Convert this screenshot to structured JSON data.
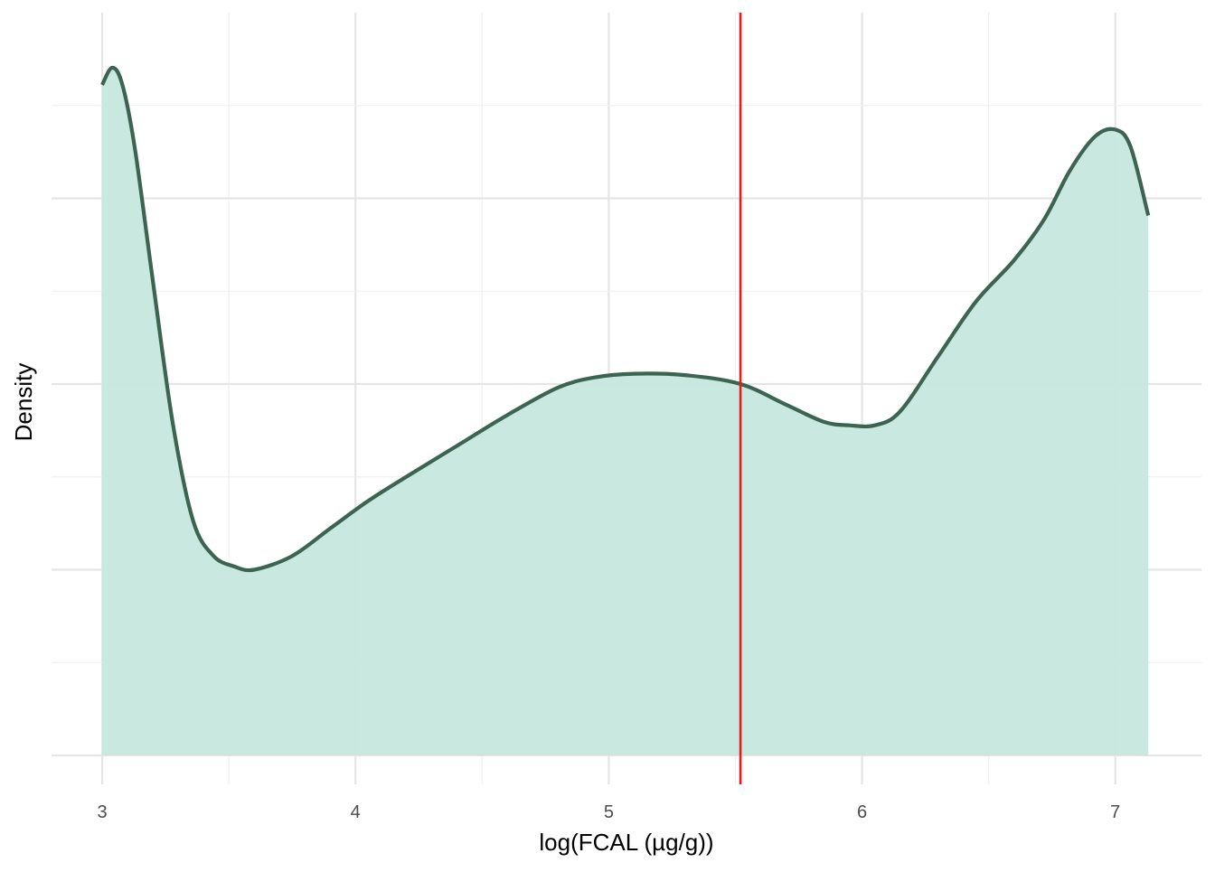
{
  "chart_data": {
    "type": "area",
    "title": "",
    "xlabel": "log(FCAL (µg/g))",
    "ylabel": "Density",
    "x_ticks": [
      "3",
      "4",
      "5",
      "6",
      "7"
    ],
    "y_ticks_labeled": false,
    "xlim": [
      2.8,
      7.34
    ],
    "ylim": [
      0,
      1.08
    ],
    "grid": true,
    "legend": "none",
    "reference_line": {
      "x": 5.52,
      "color": "#e41a1c"
    },
    "fill_color": "#c6e7de",
    "line_color": "#3d6352",
    "series": [
      {
        "x": [
          3.0,
          3.04,
          3.08,
          3.13,
          3.2,
          3.28,
          3.36,
          3.44,
          3.52,
          3.6,
          3.75,
          3.9,
          4.05,
          4.2,
          4.4,
          4.6,
          4.8,
          4.95,
          5.1,
          5.3,
          5.52,
          5.7,
          5.85,
          5.95,
          6.05,
          6.15,
          6.3,
          6.45,
          6.6,
          6.72,
          6.82,
          6.92,
          7.0,
          7.06,
          7.13
        ],
        "y": [
          0.975,
          1.0,
          0.975,
          0.88,
          0.69,
          0.48,
          0.34,
          0.29,
          0.275,
          0.27,
          0.29,
          0.33,
          0.37,
          0.405,
          0.45,
          0.495,
          0.535,
          0.55,
          0.555,
          0.553,
          0.54,
          0.51,
          0.485,
          0.48,
          0.48,
          0.5,
          0.58,
          0.66,
          0.72,
          0.78,
          0.85,
          0.9,
          0.91,
          0.885,
          0.785
        ]
      }
    ]
  }
}
